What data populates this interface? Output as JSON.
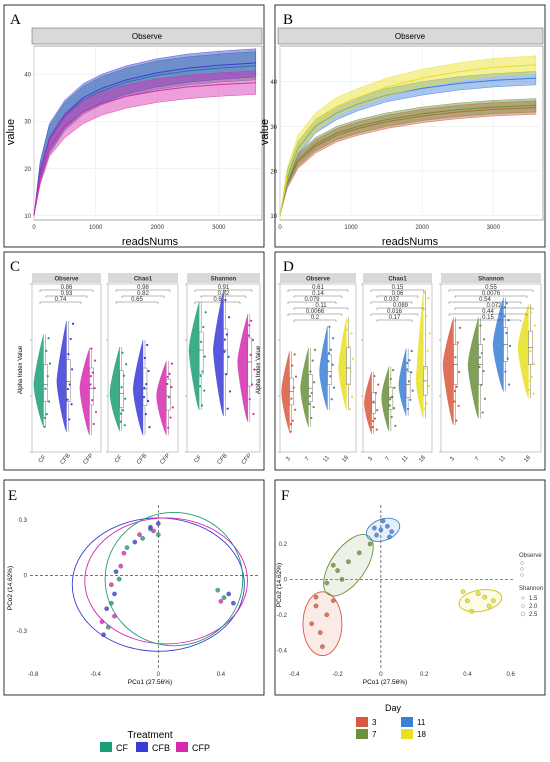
{
  "panels": {
    "A": {
      "letter": "A",
      "strip": "Observe",
      "xlabel": "readsNums",
      "ylabel": "value"
    },
    "B": {
      "letter": "B",
      "strip": "Observe",
      "xlabel": "readsNums",
      "ylabel": "value"
    },
    "C": {
      "letter": "C",
      "ylabel": "Alpha Index Value",
      "strips": [
        "Observe",
        "Chao1",
        "Shannon"
      ]
    },
    "D": {
      "letter": "D",
      "ylabel": "Alpha Index Value",
      "strips": [
        "Observe",
        "Chao1",
        "Shannon"
      ]
    },
    "E": {
      "letter": "E",
      "xlabel": "PCo1 (27.56%)",
      "ylabel": "PCo2 (14.62%)"
    },
    "F": {
      "letter": "F",
      "xlabel": "PCo1 (27.56%)",
      "ylabel": "PCo2 (14.62%)"
    }
  },
  "legend_treatment": {
    "title": "Treatment",
    "items": [
      {
        "label": "CF",
        "color": "#1b9e77"
      },
      {
        "label": "CFB",
        "color": "#3b3bd8"
      },
      {
        "label": "CFP",
        "color": "#d62bb0"
      }
    ]
  },
  "legend_day": {
    "title": "Day",
    "items": [
      {
        "label": "3",
        "color": "#d9573c"
      },
      {
        "label": "11",
        "color": "#3b7fd6"
      },
      {
        "label": "7",
        "color": "#6b8f3a"
      },
      {
        "label": "18",
        "color": "#e8e020"
      }
    ]
  },
  "legend_size": {
    "observe_title": "Observe",
    "shannon_title": "Shannon",
    "shannon_values": [
      "1.5",
      "2.0",
      "2.5"
    ]
  },
  "chart_data": [
    {
      "type": "area",
      "panel": "A",
      "title": "Observe",
      "xlabel": "readsNums",
      "ylabel": "value",
      "xlim": [
        0,
        3700
      ],
      "ylim": [
        9,
        46
      ],
      "xticks": [
        0,
        1000,
        2000,
        3000
      ],
      "yticks": [
        10,
        20,
        30,
        40
      ],
      "x": [
        0,
        100,
        250,
        500,
        800,
        1100,
        1500,
        2000,
        2500,
        3000,
        3600
      ],
      "series": [
        {
          "name": "CF",
          "color": "#1b9e77",
          "mean": [
            10,
            19,
            26,
            31,
            34.5,
            36.5,
            38.3,
            39.8,
            40.7,
            41.3,
            41.8
          ],
          "lower": [
            10,
            17,
            23,
            28,
            31.5,
            33.5,
            35.3,
            36.8,
            37.7,
            38.3,
            38.8
          ],
          "upper": [
            10,
            21,
            29,
            34,
            37.5,
            39.5,
            41.3,
            42.8,
            43.7,
            44.3,
            44.8
          ]
        },
        {
          "name": "CFB",
          "color": "#3b3bd8",
          "mean": [
            10,
            19.5,
            26.5,
            31.5,
            35,
            37,
            38.8,
            40.3,
            41.3,
            41.9,
            42.4
          ],
          "lower": [
            10,
            17.5,
            23.5,
            28.5,
            32,
            34,
            35.8,
            37.3,
            38.3,
            38.9,
            39.4
          ],
          "upper": [
            10,
            21.5,
            29.5,
            34.5,
            38,
            40,
            41.8,
            43.3,
            44.3,
            44.9,
            45.4
          ]
        },
        {
          "name": "CFP",
          "color": "#d62bb0",
          "mean": [
            10,
            18,
            24.5,
            29,
            32,
            33.8,
            35.3,
            36.5,
            37.3,
            37.8,
            38.2
          ],
          "lower": [
            10,
            16.5,
            22.5,
            26.5,
            29.5,
            31.3,
            32.8,
            34,
            34.8,
            35.3,
            35.7
          ],
          "upper": [
            10,
            19.5,
            26.5,
            31.5,
            34.5,
            36.3,
            37.8,
            39,
            39.8,
            40.3,
            40.7
          ]
        }
      ]
    },
    {
      "type": "area",
      "panel": "B",
      "title": "Observe",
      "xlabel": "readsNums",
      "ylabel": "value",
      "xlim": [
        0,
        3700
      ],
      "ylim": [
        9,
        48
      ],
      "xticks": [
        0,
        1000,
        2000,
        3000
      ],
      "yticks": [
        10,
        20,
        30,
        40
      ],
      "x": [
        0,
        100,
        250,
        500,
        800,
        1100,
        1500,
        2000,
        2500,
        3000,
        3600
      ],
      "series": [
        {
          "name": "3",
          "color": "#d9573c",
          "mean": [
            10,
            17,
            22,
            25.5,
            28,
            29.5,
            31,
            32.3,
            33.2,
            33.8,
            34.2
          ],
          "lower": [
            10,
            16,
            20.5,
            24,
            26.5,
            28,
            29.5,
            30.8,
            31.7,
            32.3,
            32.7
          ],
          "upper": [
            10,
            18,
            23.5,
            27,
            29.5,
            31,
            32.5,
            33.8,
            34.7,
            35.3,
            35.7
          ]
        },
        {
          "name": "7",
          "color": "#6b8f3a",
          "mean": [
            10,
            17.5,
            22.5,
            26,
            28.5,
            30,
            31.5,
            32.8,
            33.7,
            34.3,
            34.7
          ],
          "lower": [
            10,
            16.5,
            21,
            24.5,
            27,
            28.5,
            30,
            31.3,
            32.2,
            32.8,
            33.2
          ],
          "upper": [
            10,
            18.5,
            24,
            27.5,
            30,
            31.5,
            33,
            34.3,
            35.2,
            35.8,
            36.2
          ]
        },
        {
          "name": "11",
          "color": "#3b7fd6",
          "mean": [
            10,
            18.5,
            25,
            30,
            33,
            35,
            37,
            38.5,
            39.6,
            40.3,
            40.8
          ],
          "lower": [
            10,
            17,
            23.5,
            28.5,
            31.5,
            33.5,
            35.5,
            37,
            38.1,
            38.8,
            39.3
          ],
          "upper": [
            10,
            20,
            26.5,
            31.5,
            34.5,
            36.5,
            38.5,
            40,
            41.1,
            41.8,
            42.3
          ]
        },
        {
          "name": "18",
          "color": "#e8e020",
          "mean": [
            10,
            19,
            26,
            31,
            34.5,
            36.5,
            38.8,
            40.8,
            42.2,
            43.2,
            43.8
          ],
          "lower": [
            10,
            17.5,
            24,
            29,
            32.5,
            34.5,
            36.8,
            38.8,
            40.2,
            41.2,
            41.8
          ],
          "upper": [
            10,
            20.5,
            28,
            33,
            36.5,
            38.5,
            40.8,
            42.8,
            44.2,
            45.2,
            45.8
          ]
        }
      ]
    },
    {
      "type": "violin",
      "panel": "C",
      "ylabel": "Alpha Index Value",
      "categories": [
        "CF",
        "CFB",
        "CFP"
      ],
      "facets": [
        {
          "strip": "Observe",
          "ylim": [
            0,
            100
          ],
          "median": [
            40,
            42,
            38
          ],
          "q1": [
            30,
            30,
            28
          ],
          "q3": [
            52,
            55,
            50
          ],
          "min": [
            15,
            12,
            10
          ],
          "max": [
            70,
            78,
            62
          ]
        },
        {
          "strip": "Chao1",
          "ylim": [
            0,
            120
          ],
          "median": [
            42,
            45,
            40
          ],
          "q1": [
            32,
            33,
            30
          ],
          "q3": [
            58,
            60,
            52
          ],
          "min": [
            15,
            12,
            12
          ],
          "max": [
            75,
            80,
            65
          ]
        },
        {
          "strip": "Shannon",
          "ylim": [
            0.8,
            3.6
          ],
          "median": [
            2.5,
            2.5,
            2.3
          ],
          "q1": [
            2.1,
            2.1,
            1.9
          ],
          "q3": [
            2.8,
            2.85,
            2.7
          ],
          "min": [
            1.5,
            1.4,
            1.3
          ],
          "max": [
            3.3,
            3.5,
            3.1
          ]
        }
      ],
      "annotations": [
        "0.86",
        "0.93",
        "0.74",
        "0.98",
        "0.82",
        "0.65",
        "0.91",
        "0.72",
        "0.6"
      ]
    },
    {
      "type": "violin",
      "panel": "D",
      "ylabel": "Alpha Index Value",
      "categories": [
        "3",
        "7",
        "11",
        "18"
      ],
      "facets": [
        {
          "strip": "Observe",
          "ylim": [
            0,
            100
          ],
          "median": [
            36,
            38,
            48,
            50
          ],
          "q1": [
            28,
            30,
            40,
            40
          ],
          "q3": [
            44,
            46,
            58,
            62
          ],
          "min": [
            12,
            15,
            25,
            25
          ],
          "max": [
            60,
            62,
            75,
            80
          ]
        },
        {
          "strip": "Chao1",
          "ylim": [
            0,
            130
          ],
          "median": [
            38,
            42,
            52,
            55
          ],
          "q1": [
            30,
            33,
            42,
            44
          ],
          "q3": [
            46,
            50,
            62,
            66
          ],
          "min": [
            14,
            16,
            28,
            26
          ],
          "max": [
            62,
            66,
            80,
            125
          ]
        },
        {
          "strip": "Shannon",
          "ylim": [
            1,
            3.5
          ],
          "median": [
            2.3,
            2.3,
            2.6,
            2.55
          ],
          "q1": [
            2.0,
            2.0,
            2.35,
            2.3
          ],
          "q3": [
            2.6,
            2.6,
            2.85,
            2.8
          ],
          "min": [
            1.4,
            1.5,
            1.9,
            1.8
          ],
          "max": [
            3.0,
            3.0,
            3.3,
            3.2
          ]
        }
      ],
      "annotations": [
        "0.61",
        "0.14",
        "0.079",
        "0.11",
        "0.0066",
        "0.2",
        "0.15",
        "0.06",
        "0.037",
        "0.089",
        "0.016",
        "0.17",
        "0.55",
        "0.0076",
        "0.54",
        "0.072",
        "0.44",
        "0.15"
      ]
    },
    {
      "type": "scatter",
      "panel": "E",
      "xlabel": "PCo1 (27.56%)",
      "ylabel": "PCo2 (14.62%)",
      "xlim": [
        -0.82,
        0.65
      ],
      "ylim": [
        -0.5,
        0.38
      ],
      "xticks": [
        -0.8,
        -0.4,
        0,
        0.4
      ],
      "yticks": [
        -0.3,
        0,
        0.3
      ],
      "series": [
        {
          "name": "CF",
          "color": "#1b9e77",
          "points": [
            [
              -0.2,
              0.15
            ],
            [
              -0.1,
              0.2
            ],
            [
              -0.25,
              -0.02
            ],
            [
              -0.3,
              -0.15
            ],
            [
              0.38,
              -0.08
            ],
            [
              0.42,
              -0.12
            ],
            [
              -0.05,
              0.25
            ],
            [
              0.0,
              0.22
            ],
            [
              -0.32,
              -0.28
            ]
          ]
        },
        {
          "name": "CFB",
          "color": "#3b3bd8",
          "points": [
            [
              -0.15,
              0.18
            ],
            [
              -0.05,
              0.26
            ],
            [
              -0.27,
              0.02
            ],
            [
              -0.33,
              -0.18
            ],
            [
              0.45,
              -0.1
            ],
            [
              0.48,
              -0.15
            ],
            [
              0.0,
              0.28
            ],
            [
              -0.28,
              -0.1
            ],
            [
              -0.35,
              -0.32
            ]
          ]
        },
        {
          "name": "CFP",
          "color": "#d62bb0",
          "points": [
            [
              -0.22,
              0.12
            ],
            [
              -0.12,
              0.22
            ],
            [
              -0.24,
              0.05
            ],
            [
              -0.28,
              -0.22
            ],
            [
              0.4,
              -0.14
            ],
            [
              -0.03,
              0.24
            ],
            [
              -0.3,
              -0.05
            ],
            [
              -0.36,
              -0.25
            ]
          ]
        }
      ]
    },
    {
      "type": "scatter",
      "panel": "F",
      "xlabel": "PCo1 (27.56%)",
      "ylabel": "PCo2 (14.62%)",
      "xlim": [
        -0.42,
        0.62
      ],
      "ylim": [
        -0.5,
        0.42
      ],
      "xticks": [
        -0.4,
        -0.2,
        0,
        0.2,
        0.4,
        0.6
      ],
      "yticks": [
        -0.4,
        -0.2,
        0,
        0.2
      ],
      "series": [
        {
          "name": "3",
          "color": "#d9573c",
          "points": [
            [
              -0.3,
              -0.15
            ],
            [
              -0.25,
              -0.2
            ],
            [
              -0.28,
              -0.3
            ],
            [
              -0.32,
              -0.25
            ],
            [
              -0.22,
              -0.12
            ],
            [
              -0.27,
              -0.38
            ],
            [
              -0.3,
              -0.1
            ]
          ]
        },
        {
          "name": "7",
          "color": "#6b8f3a",
          "points": [
            [
              -0.2,
              0.05
            ],
            [
              -0.15,
              0.1
            ],
            [
              -0.25,
              -0.02
            ],
            [
              -0.1,
              0.15
            ],
            [
              -0.22,
              0.08
            ],
            [
              -0.05,
              0.2
            ],
            [
              -0.18,
              0.0
            ]
          ]
        },
        {
          "name": "11",
          "color": "#3b7fd6",
          "points": [
            [
              0.0,
              0.28
            ],
            [
              0.03,
              0.3
            ],
            [
              -0.02,
              0.25
            ],
            [
              0.05,
              0.27
            ],
            [
              0.01,
              0.33
            ],
            [
              0.04,
              0.24
            ],
            [
              -0.03,
              0.29
            ]
          ]
        },
        {
          "name": "18",
          "color": "#e8e020",
          "points": [
            [
              0.4,
              -0.12
            ],
            [
              0.45,
              -0.08
            ],
            [
              0.5,
              -0.15
            ],
            [
              0.42,
              -0.18
            ],
            [
              0.48,
              -0.1
            ],
            [
              0.52,
              -0.12
            ],
            [
              0.38,
              -0.07
            ]
          ]
        }
      ]
    }
  ]
}
